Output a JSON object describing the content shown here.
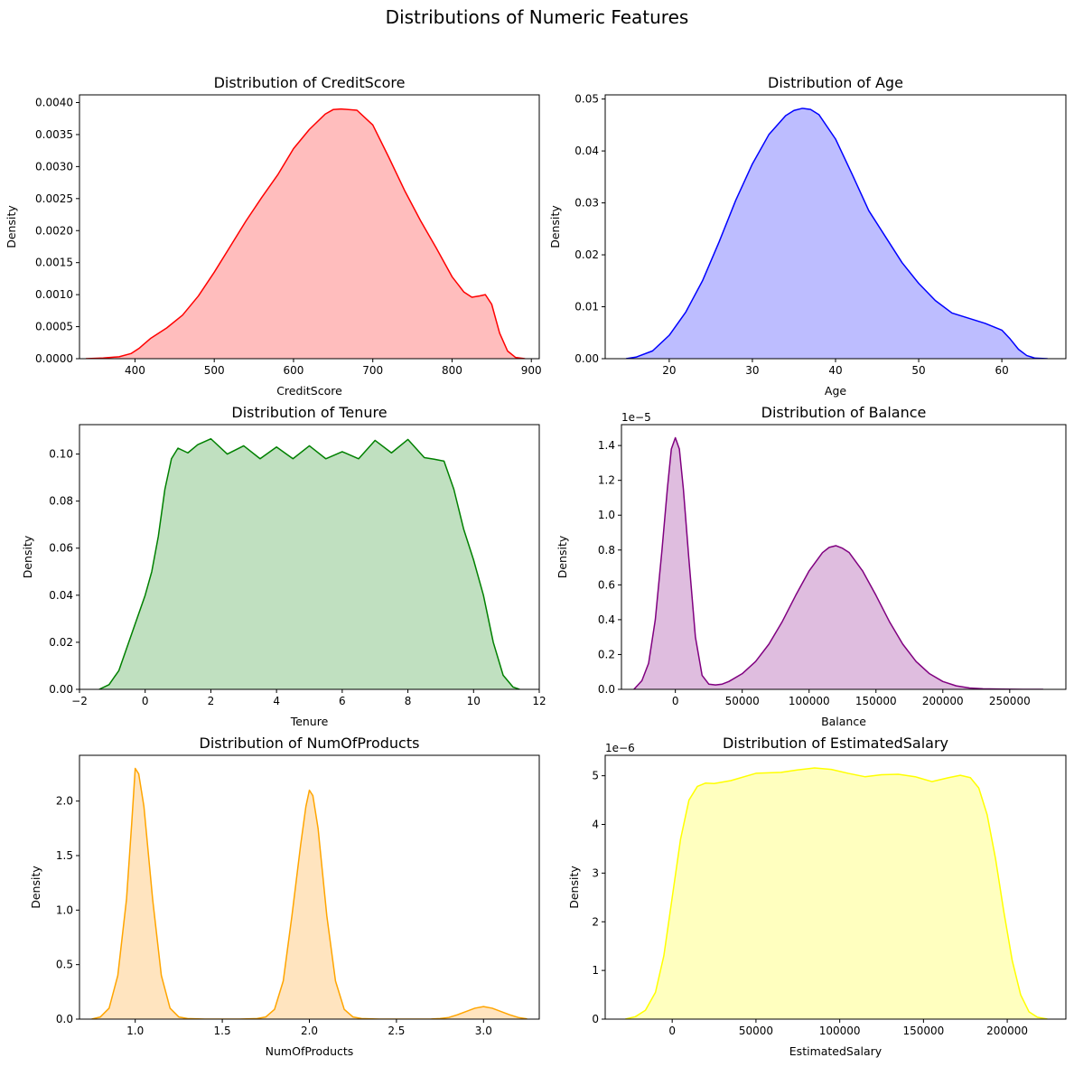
{
  "figure": {
    "title": "Distributions of Numeric Features"
  },
  "chart_data": [
    {
      "type": "area",
      "title": "Distribution of CreditScore",
      "xlabel": "CreditScore",
      "ylabel": "Density",
      "color": "#ff0000",
      "fill": "#ffbdbd",
      "xlim": [
        330,
        910
      ],
      "ylim": [
        0,
        0.00412
      ],
      "xticks": [
        400,
        500,
        600,
        700,
        800,
        900
      ],
      "xtick_labels": [
        "400",
        "500",
        "600",
        "700",
        "800",
        "900"
      ],
      "yticks": [
        0,
        0.0005,
        0.001,
        0.0015,
        0.002,
        0.0025,
        0.003,
        0.0035,
        0.004
      ],
      "ytick_labels": [
        "0.0000",
        "0.0005",
        "0.0010",
        "0.0015",
        "0.0020",
        "0.0025",
        "0.0030",
        "0.0035",
        "0.0040"
      ],
      "offset_text": "",
      "x": [
        338,
        360,
        380,
        395,
        405,
        420,
        440,
        460,
        480,
        500,
        520,
        540,
        560,
        580,
        600,
        620,
        640,
        650,
        660,
        680,
        700,
        720,
        740,
        760,
        780,
        800,
        815,
        825,
        835,
        842,
        850,
        860,
        870,
        880,
        892
      ],
      "y": [
        0,
        1e-05,
        3e-05,
        8e-05,
        0.00016,
        0.00032,
        0.00048,
        0.00068,
        0.00098,
        0.00135,
        0.00175,
        0.00215,
        0.00252,
        0.00287,
        0.00328,
        0.00358,
        0.00382,
        0.00389,
        0.0039,
        0.00388,
        0.00365,
        0.00315,
        0.00263,
        0.00216,
        0.00173,
        0.00128,
        0.00104,
        0.00096,
        0.00098,
        0.001,
        0.00085,
        0.0004,
        0.00012,
        2e-05,
        0
      ]
    },
    {
      "type": "area",
      "title": "Distribution of Age",
      "xlabel": "Age",
      "ylabel": "Density",
      "color": "#0000ff",
      "fill": "#bdbdff",
      "xlim": [
        12.3,
        67.7
      ],
      "ylim": [
        0,
        0.0508
      ],
      "xticks": [
        20,
        30,
        40,
        50,
        60
      ],
      "xtick_labels": [
        "20",
        "30",
        "40",
        "50",
        "60"
      ],
      "yticks": [
        0,
        0.01,
        0.02,
        0.03,
        0.04,
        0.05
      ],
      "ytick_labels": [
        "0.00",
        "0.01",
        "0.02",
        "0.03",
        "0.04",
        "0.05"
      ],
      "offset_text": "",
      "x": [
        14.8,
        16,
        18,
        20,
        22,
        24,
        26,
        28,
        30,
        32,
        34,
        35,
        36,
        37,
        38,
        40,
        42,
        44,
        46,
        48,
        50,
        52,
        54,
        56,
        58,
        60,
        61,
        62,
        63,
        64,
        65.5
      ],
      "y": [
        0,
        0.0003,
        0.0015,
        0.0045,
        0.009,
        0.015,
        0.0225,
        0.0305,
        0.0375,
        0.0432,
        0.0468,
        0.0478,
        0.0482,
        0.048,
        0.047,
        0.0423,
        0.0355,
        0.0285,
        0.0235,
        0.0185,
        0.0145,
        0.0112,
        0.0088,
        0.0078,
        0.0068,
        0.0055,
        0.0038,
        0.0018,
        0.0006,
        0.0001,
        0
      ]
    },
    {
      "type": "area",
      "title": "Distribution of Tenure",
      "xlabel": "Tenure",
      "ylabel": "Density",
      "color": "#008000",
      "fill": "#c0e0c0",
      "xlim": [
        -2,
        12
      ],
      "ylim": [
        0,
        0.1125
      ],
      "xticks": [
        -2,
        0,
        2,
        4,
        6,
        8,
        10,
        12
      ],
      "xtick_labels": [
        "−2",
        "0",
        "2",
        "4",
        "6",
        "8",
        "10",
        "12"
      ],
      "yticks": [
        0,
        0.02,
        0.04,
        0.06,
        0.08,
        0.1
      ],
      "ytick_labels": [
        "0.00",
        "0.02",
        "0.04",
        "0.06",
        "0.08",
        "0.10"
      ],
      "offset_text": "",
      "x": [
        -1.4,
        -1.1,
        -0.8,
        -0.5,
        -0.2,
        0,
        0.2,
        0.4,
        0.6,
        0.8,
        1,
        1.3,
        1.6,
        2,
        2.5,
        3,
        3.5,
        4,
        4.5,
        5,
        5.5,
        6,
        6.5,
        7,
        7.5,
        8,
        8.5,
        8.8,
        9.1,
        9.4,
        9.7,
        10,
        10.3,
        10.6,
        10.9,
        11.2,
        11.4
      ],
      "y": [
        0,
        0.002,
        0.008,
        0.02,
        0.032,
        0.04,
        0.05,
        0.065,
        0.085,
        0.098,
        0.1025,
        0.1005,
        0.104,
        0.1065,
        0.1,
        0.1035,
        0.098,
        0.103,
        0.098,
        0.1035,
        0.098,
        0.101,
        0.098,
        0.1058,
        0.1005,
        0.1062,
        0.0985,
        0.0978,
        0.097,
        0.085,
        0.068,
        0.055,
        0.04,
        0.02,
        0.006,
        0.001,
        0
      ]
    },
    {
      "type": "area",
      "title": "Distribution of Balance",
      "xlabel": "Balance",
      "ylabel": "Density",
      "color": "#800080",
      "fill": "#dfbddf",
      "xlim": [
        -40300,
        292000
      ],
      "ylim": [
        0,
        1.52e-05
      ],
      "xticks": [
        0,
        50000,
        100000,
        150000,
        200000,
        250000
      ],
      "xtick_labels": [
        "0",
        "50000",
        "100000",
        "150000",
        "200000",
        "250000"
      ],
      "yticks": [
        0,
        2e-06,
        4e-06,
        6e-06,
        8e-06,
        1e-05,
        1.2e-05,
        1.4e-05
      ],
      "ytick_labels": [
        "0.0",
        "0.2",
        "0.4",
        "0.6",
        "0.8",
        "1.0",
        "1.2",
        "1.4"
      ],
      "offset_text": "1e−5",
      "x": [
        -31000,
        -25000,
        -20000,
        -15000,
        -10000,
        -6000,
        -3000,
        0,
        3000,
        6000,
        10000,
        15000,
        20000,
        25000,
        30000,
        35000,
        40000,
        50000,
        60000,
        70000,
        80000,
        90000,
        100000,
        110000,
        115000,
        120000,
        125000,
        130000,
        140000,
        150000,
        160000,
        170000,
        180000,
        190000,
        200000,
        210000,
        220000,
        230000,
        245000,
        260000,
        275000
      ],
      "y": [
        0,
        5e-07,
        1.5e-06,
        4e-06,
        8e-06,
        1.15e-05,
        1.38e-05,
        1.445e-05,
        1.38e-05,
        1.15e-05,
        7.6e-06,
        3e-06,
        8e-07,
        3e-07,
        2.5e-07,
        3e-07,
        4.5e-07,
        9e-07,
        1.6e-06,
        2.6e-06,
        3.9e-06,
        5.4e-06,
        6.8e-06,
        7.85e-06,
        8.15e-06,
        8.25e-06,
        8.1e-06,
        7.85e-06,
        6.8e-06,
        5.4e-06,
        3.9e-06,
        2.6e-06,
        1.6e-06,
        9e-07,
        4.5e-07,
        2e-07,
        8e-08,
        3e-08,
        1e-08,
        3e-09,
        0
      ]
    },
    {
      "type": "area",
      "title": "Distribution of NumOfProducts",
      "xlabel": "NumOfProducts",
      "ylabel": "Density",
      "color": "#ffa500",
      "fill": "#ffe4bf",
      "xlim": [
        0.68,
        3.32
      ],
      "ylim": [
        0,
        2.42
      ],
      "xticks": [
        1,
        1.5,
        2,
        2.5,
        3
      ],
      "xtick_labels": [
        "1.0",
        "1.5",
        "2.0",
        "2.5",
        "3.0"
      ],
      "yticks": [
        0,
        0.5,
        1,
        1.5,
        2
      ],
      "ytick_labels": [
        "0.0",
        "0.5",
        "1.0",
        "1.5",
        "2.0"
      ],
      "offset_text": "",
      "x": [
        0.75,
        0.8,
        0.85,
        0.9,
        0.95,
        0.98,
        1,
        1.02,
        1.05,
        1.1,
        1.15,
        1.2,
        1.25,
        1.3,
        1.4,
        1.5,
        1.6,
        1.7,
        1.75,
        1.8,
        1.85,
        1.9,
        1.95,
        1.98,
        2,
        2.02,
        2.05,
        2.1,
        2.15,
        2.2,
        2.25,
        2.3,
        2.4,
        2.5,
        2.6,
        2.7,
        2.75,
        2.8,
        2.85,
        2.9,
        2.95,
        3,
        3.05,
        3.1,
        3.15,
        3.2,
        3.25
      ],
      "y": [
        0,
        0.02,
        0.1,
        0.4,
        1.1,
        1.8,
        2.3,
        2.25,
        1.95,
        1.1,
        0.4,
        0.1,
        0.02,
        0.005,
        0,
        0,
        0,
        0.005,
        0.02,
        0.09,
        0.35,
        0.95,
        1.6,
        1.95,
        2.1,
        2.05,
        1.75,
        0.95,
        0.35,
        0.09,
        0.02,
        0.005,
        0,
        0,
        0,
        0.001,
        0.005,
        0.015,
        0.04,
        0.07,
        0.1,
        0.115,
        0.1,
        0.07,
        0.04,
        0.015,
        0.002
      ]
    },
    {
      "type": "area",
      "title": "Distribution of EstimatedSalary",
      "xlabel": "EstimatedSalary",
      "ylabel": "Density",
      "color": "#ffff00",
      "fill": "#ffffbf",
      "xlim": [
        -40000,
        235000
      ],
      "ylim": [
        0,
        5.42e-06
      ],
      "xticks": [
        0,
        50000,
        100000,
        150000,
        200000
      ],
      "xtick_labels": [
        "0",
        "50000",
        "100000",
        "150000",
        "200000"
      ],
      "yticks": [
        0,
        1e-06,
        2e-06,
        3e-06,
        4e-06,
        5e-06
      ],
      "ytick_labels": [
        "0",
        "1",
        "2",
        "3",
        "4",
        "5"
      ],
      "offset_text": "1e−6",
      "x": [
        -28000,
        -22000,
        -16000,
        -10000,
        -5000,
        0,
        5000,
        10000,
        15000,
        20000,
        25000,
        35000,
        50000,
        65000,
        75000,
        85000,
        95000,
        105000,
        115000,
        125000,
        135000,
        145000,
        155000,
        165000,
        172000,
        178000,
        183000,
        188000,
        193000,
        198000,
        203000,
        208000,
        213000,
        218000,
        224000
      ],
      "y": [
        0,
        5e-08,
        1.8e-07,
        5.5e-07,
        1.3e-06,
        2.5e-06,
        3.7e-06,
        4.5e-06,
        4.78e-06,
        4.85e-06,
        4.84e-06,
        4.9e-06,
        5.05e-06,
        5.07e-06,
        5.12e-06,
        5.16e-06,
        5.13e-06,
        5.05e-06,
        4.98e-06,
        5.02e-06,
        5.03e-06,
        4.98e-06,
        4.88e-06,
        4.96e-06,
        5.01e-06,
        4.96e-06,
        4.75e-06,
        4.2e-06,
        3.3e-06,
        2.2e-06,
        1.2e-06,
        5e-07,
        1.5e-07,
        4e-08,
        0
      ]
    }
  ]
}
